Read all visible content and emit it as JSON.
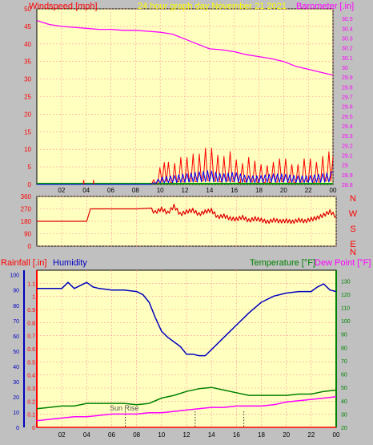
{
  "header": {
    "windspeed_label": "Windspeed [mph]",
    "graph_title": "24 hour graph day   November 21 2021",
    "barometer_label": "Barometer [.in]"
  },
  "footer": {
    "rainfall_label": "Rainfall [.in]",
    "humidity_label": "Humidity",
    "temperature_label": "Temperature [°F]",
    "dewpoint_label": "Dew Point [°F]",
    "sunrise_label": "Sun Rise"
  },
  "colors": {
    "background": "#c0c0c0",
    "plot_bg": "#ffffc0",
    "grid": "#ff9a9a",
    "title": "#ffff00",
    "wind_gust": "#ff0000",
    "wind_avg": "#0000ff",
    "wind_low": "#00a000",
    "barometer": "#ff00ff",
    "direction": "#e00000",
    "rainfall": "#ff0000",
    "humidity": "#0000c0",
    "temperature": "#008000",
    "dewpoint": "#ff00ff"
  },
  "chart_data": [
    {
      "type": "line",
      "title": "24 hour graph day   November 21 2021",
      "x_ticks": [
        "02",
        "04",
        "06",
        "08",
        "10",
        "12",
        "14",
        "16",
        "18",
        "20",
        "22",
        "00"
      ],
      "xlim_hours": [
        0,
        24
      ],
      "left_axis": {
        "label": "Windspeed [mph]",
        "ylim": [
          0,
          50
        ],
        "ticks": [
          0,
          5,
          10,
          15,
          20,
          25,
          30,
          35,
          40,
          45,
          50
        ]
      },
      "right_axis": {
        "label": "Barometer [.in]",
        "ylim": [
          28.8,
          30.6
        ],
        "ticks": [
          "28.8",
          "28.9",
          "29",
          "29.1",
          "29.2",
          "29.3",
          "29.4",
          "29.5",
          "29.6",
          "29.7",
          "29.8",
          "29.9",
          "30",
          "30.1",
          "30.2",
          "30.3",
          "30.4",
          "30.5"
        ]
      },
      "series": [
        {
          "name": "Barometer [.in]",
          "axis": "right",
          "x": [
            0,
            1,
            2,
            3,
            4,
            5,
            6,
            7,
            8,
            9,
            10,
            11,
            12,
            13,
            14,
            15,
            16,
            17,
            18,
            19,
            20,
            21,
            22,
            23,
            24
          ],
          "values": [
            30.48,
            30.44,
            30.42,
            30.41,
            30.4,
            30.39,
            30.39,
            30.38,
            30.38,
            30.37,
            30.36,
            30.34,
            30.29,
            30.24,
            30.19,
            30.18,
            30.16,
            30.13,
            30.11,
            30.09,
            30.06,
            30.01,
            29.98,
            29.95,
            29.92
          ]
        },
        {
          "name": "Windspeed [mph]",
          "axis": "left",
          "role": "gust",
          "x": [
            0,
            9.3,
            9.8,
            10.5,
            11,
            11.5,
            12,
            12.5,
            13,
            13.5,
            14,
            14.5,
            15,
            15.5,
            16,
            16.5,
            17,
            17.5,
            18,
            18.5,
            19,
            19.5,
            20,
            20.5,
            21,
            21.5,
            22,
            22.5,
            23,
            23.5,
            24
          ],
          "values": [
            0,
            0,
            4,
            7,
            5,
            8,
            7,
            9,
            8,
            10,
            11,
            9,
            7,
            10,
            8,
            5,
            8,
            7,
            6,
            5,
            6,
            7,
            8,
            6,
            5,
            7,
            8,
            6,
            7,
            10,
            8
          ]
        },
        {
          "name": "Windspeed [mph]",
          "axis": "left",
          "role": "average",
          "x": [
            0,
            9.3,
            10,
            11,
            12,
            13,
            14,
            15,
            16,
            17,
            18,
            19,
            20,
            21,
            22,
            23,
            24
          ],
          "values": [
            0,
            0,
            2,
            2.5,
            3,
            3.5,
            4,
            3,
            3.5,
            2.5,
            2.5,
            3,
            3,
            2.5,
            2.5,
            3,
            3.5
          ]
        },
        {
          "name": "Windspeed [mph]",
          "axis": "left",
          "role": "low",
          "x": [
            0,
            24
          ],
          "values": [
            0,
            0
          ]
        }
      ],
      "wind_spikes_hours": [
        3.8,
        4.6
      ]
    },
    {
      "type": "line",
      "title": "",
      "xlim_hours": [
        0,
        24
      ],
      "left_axis": {
        "ylim": [
          0,
          360
        ],
        "ticks": [
          0,
          90,
          180,
          270,
          360
        ]
      },
      "right_axis": {
        "labels": [
          "N",
          "W",
          "S",
          "E",
          "N"
        ]
      },
      "series": [
        {
          "name": "",
          "axis": "left",
          "x": [
            0,
            4,
            4.3,
            8,
            9.2,
            9.5,
            10,
            10.5,
            11,
            11.5,
            12,
            12.5,
            13,
            13.5,
            14,
            14.5,
            15,
            15.5,
            16,
            16.5,
            17,
            17.5,
            18,
            18.5,
            19,
            19.5,
            20,
            20.5,
            21,
            21.5,
            22,
            22.5,
            23,
            23.5,
            24
          ],
          "values": [
            180,
            180,
            270,
            270,
            262,
            245,
            270,
            240,
            290,
            230,
            250,
            260,
            230,
            250,
            260,
            210,
            220,
            200,
            195,
            210,
            185,
            200,
            190,
            175,
            190,
            180,
            185,
            175,
            190,
            180,
            195,
            205,
            225,
            250,
            215
          ]
        }
      ]
    },
    {
      "type": "line",
      "title": "",
      "xlim_hours": [
        0,
        24
      ],
      "left_axes": [
        {
          "label": "Rainfall [.in]",
          "ylim": [
            0,
            1.2
          ],
          "ticks": [
            "0",
            "0.1",
            "0.2",
            "0.3",
            "0.4",
            "0.5",
            "0.6",
            "0.7",
            "0.8",
            "0.9",
            "1",
            "1.1"
          ]
        },
        {
          "label": "Humidity",
          "ylim": [
            0,
            103
          ],
          "ticks": [
            0,
            10,
            20,
            30,
            40,
            50,
            60,
            70,
            80,
            90,
            100
          ]
        }
      ],
      "right_axis": {
        "label": "Temperature [°F]",
        "ylim": [
          20,
          138
        ],
        "ticks": [
          20,
          30,
          40,
          50,
          60,
          70,
          80,
          90,
          100,
          110,
          120,
          130
        ]
      },
      "series": [
        {
          "name": "Humidity",
          "axis": "humidity",
          "x": [
            0,
            1,
            2,
            2.5,
            3,
            4,
            4.5,
            5,
            6,
            7,
            8,
            8.5,
            9,
            9.5,
            10,
            10.5,
            11,
            11.5,
            12,
            12.5,
            13,
            13.5,
            14,
            15,
            16,
            17,
            18,
            19,
            20,
            21,
            22,
            22.5,
            23,
            23.5,
            24
          ],
          "values": [
            91,
            91,
            91,
            95,
            91,
            95,
            92,
            91,
            90,
            90,
            89,
            87,
            82,
            72,
            63,
            59,
            56,
            53,
            48,
            48,
            47,
            47,
            51,
            59,
            67,
            75,
            82,
            86,
            88,
            89,
            89,
            92,
            94,
            90,
            89
          ]
        },
        {
          "name": "Temperature [°F]",
          "axis": "temperature",
          "x": [
            0,
            1,
            2,
            3,
            4,
            5,
            6,
            7,
            8,
            9,
            10,
            11,
            12,
            13,
            14,
            15,
            16,
            17,
            18,
            19,
            20,
            21,
            22,
            23,
            24
          ],
          "values": [
            34,
            35,
            36,
            36,
            38,
            38,
            38,
            38,
            37,
            38,
            42,
            44,
            47,
            49,
            50,
            48,
            46,
            44,
            44,
            44,
            44,
            45,
            45,
            47,
            48
          ]
        },
        {
          "name": "Dew Point [°F]",
          "axis": "temperature",
          "x": [
            0,
            1,
            2,
            3,
            4,
            5,
            6,
            7,
            8,
            9,
            10,
            11,
            12,
            13,
            14,
            15,
            16,
            17,
            18,
            19,
            20,
            21,
            22,
            23,
            24
          ],
          "values": [
            25,
            26,
            27,
            28,
            28,
            29,
            30,
            30,
            30,
            31,
            31,
            32,
            33,
            34,
            35,
            35,
            36,
            36,
            36,
            37,
            39,
            40,
            41,
            42,
            43
          ]
        },
        {
          "name": "Rainfall [.in]",
          "axis": "rainfall",
          "x": [
            0,
            24
          ],
          "values": [
            0,
            0
          ]
        }
      ],
      "sunrise_hour": 7.1,
      "markers_hours": [
        7.1,
        12.7,
        16.6
      ]
    }
  ]
}
